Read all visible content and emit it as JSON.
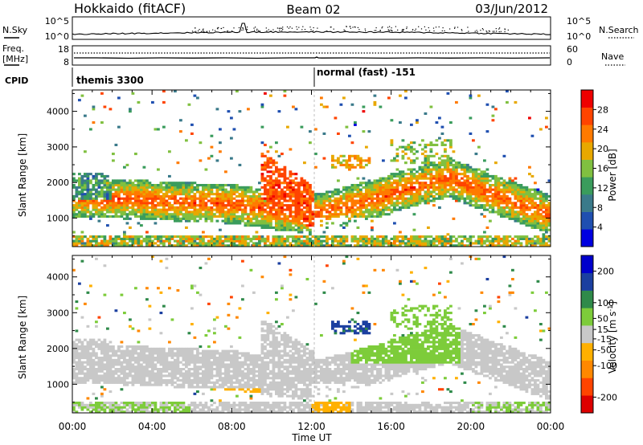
{
  "header": {
    "station": "Hokkaido (fitACF)",
    "beam": "Beam 02",
    "date": "03/Jun/2012"
  },
  "status_panels": {
    "nsky": {
      "label": "N.Sky",
      "left_ticks": [
        "10^5",
        "10^0"
      ],
      "right_ticks": [
        "10^5",
        "10^0"
      ],
      "right_label": "N.Search"
    },
    "freq": {
      "label_line1": "Freq.",
      "label_line2": "[MHz]",
      "left_ticks": [
        "18",
        "8"
      ],
      "right_ticks": [
        "60",
        "0"
      ],
      "right_label": "Nave"
    },
    "cpid": {
      "label": "CPID",
      "segments": [
        {
          "start_hour": 0,
          "text": "themis 3300"
        },
        {
          "start_hour": 12,
          "text": "normal (fast) -151"
        }
      ]
    }
  },
  "chart_data": [
    {
      "type": "heatmap",
      "title": "",
      "quantity": "Power",
      "ylabel": "Slant Range [km]",
      "xlabel": "",
      "xlim_hours": [
        0,
        24
      ],
      "ylim": [
        200,
        4600
      ],
      "y_ticks": [
        1000,
        2000,
        3000,
        4000
      ],
      "colorbar": {
        "label": "Power [dB]",
        "ticks": [
          "28",
          "24",
          "20",
          "16",
          "12",
          "8",
          "4"
        ],
        "tick_values": [
          28,
          24,
          20,
          16,
          12,
          8,
          4
        ],
        "range": [
          0,
          32
        ],
        "colors": [
          "#0000e0",
          "#1f4fb0",
          "#3a7a8a",
          "#3a9c5c",
          "#80c040",
          "#e8a800",
          "#ff7a00",
          "#ff4400",
          "#ee0000"
        ]
      }
    },
    {
      "type": "heatmap",
      "title": "",
      "quantity": "Velocity",
      "ylabel": "Slant Range [km]",
      "xlabel": "Time UT",
      "xlim_hours": [
        0,
        24
      ],
      "ylim": [
        200,
        4600
      ],
      "y_ticks": [
        1000,
        2000,
        3000,
        4000
      ],
      "x_ticks": [
        "00:00",
        "04:00",
        "08:00",
        "12:00",
        "16:00",
        "20:00",
        "00:00"
      ],
      "x_tick_hours": [
        0,
        4,
        8,
        12,
        16,
        20,
        24
      ],
      "colorbar": {
        "label": "Velocity [m s",
        "label_superscript": "-1",
        "label_close": "]",
        "ticks": [
          "200",
          "100",
          "50",
          "15",
          "-15",
          "-50",
          "-100",
          "-200"
        ],
        "tick_values": [
          200,
          100,
          50,
          15,
          -15,
          -50,
          -100,
          -200
        ],
        "range": [
          -250,
          250
        ],
        "colors": [
          "#dd0000",
          "#ff4400",
          "#ff8800",
          "#ffb000",
          "#c8c8c8",
          "#7dcc3a",
          "#2f8a4a",
          "#1b3fa0",
          "#0000cc"
        ]
      }
    }
  ]
}
